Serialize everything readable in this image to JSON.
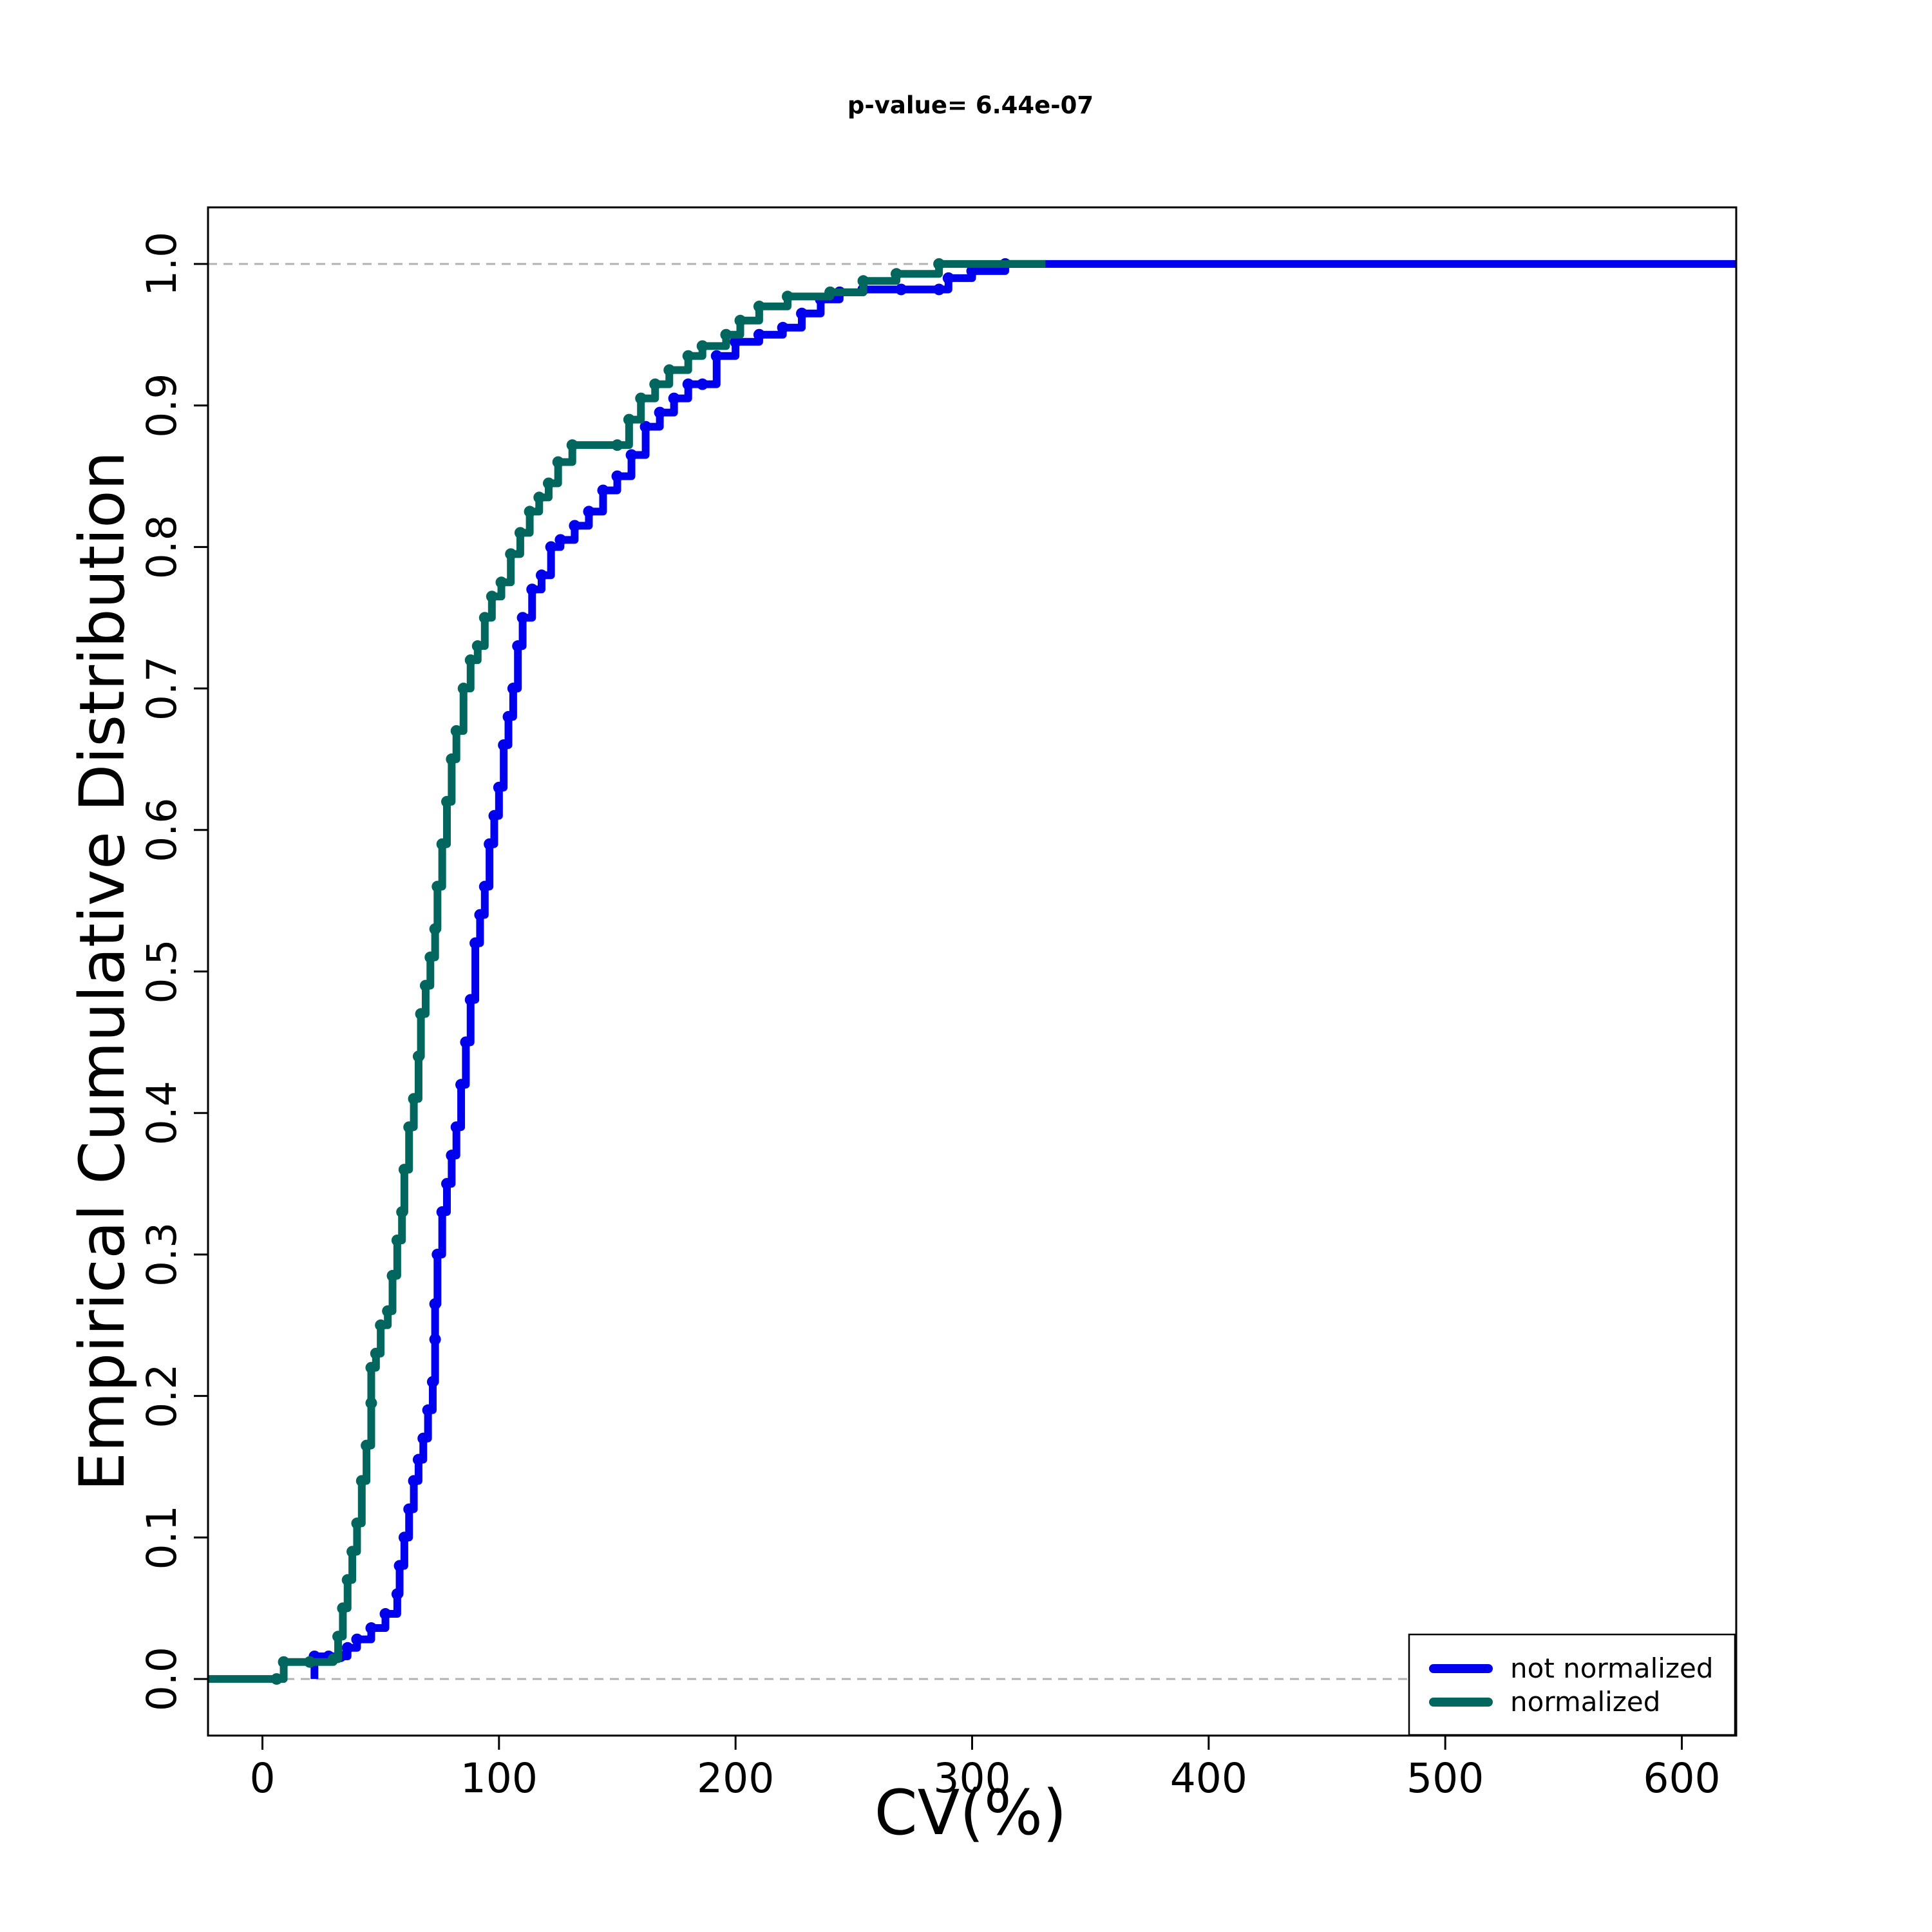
{
  "chart_data": {
    "type": "line",
    "title": "p-value= 6.44e-07",
    "xlabel": "CV(%)",
    "ylabel": "Empirical Cumulative Distribution",
    "xlim": [
      -23,
      623
    ],
    "ylim": [
      -0.04,
      1.04
    ],
    "xticks": [
      0,
      100,
      200,
      300,
      400,
      500,
      600
    ],
    "yticks": [
      0.0,
      0.1,
      0.2,
      0.3,
      0.4,
      0.5,
      0.6,
      0.7,
      0.8,
      0.9,
      1.0
    ],
    "xtick_labels": [
      "0",
      "100",
      "200",
      "300",
      "400",
      "500",
      "600"
    ],
    "ytick_labels": [
      "0.0",
      "0.1",
      "0.2",
      "0.3",
      "0.4",
      "0.5",
      "0.6",
      "0.7",
      "0.8",
      "0.9",
      "1.0"
    ],
    "reference_lines_y": [
      0.0,
      1.0
    ],
    "grid": false,
    "legend_position": "bottom-right",
    "series": [
      {
        "name": "not normalized",
        "color": "#0000EE",
        "points": [
          [
            22,
            0.0
          ],
          [
            22,
            0.016
          ],
          [
            28,
            0.016
          ],
          [
            33,
            0.016
          ],
          [
            36,
            0.022
          ],
          [
            40,
            0.028
          ],
          [
            46,
            0.036
          ],
          [
            52,
            0.046
          ],
          [
            57,
            0.06
          ],
          [
            58,
            0.08
          ],
          [
            60,
            0.1
          ],
          [
            62,
            0.12
          ],
          [
            64,
            0.14
          ],
          [
            66,
            0.155
          ],
          [
            68,
            0.17
          ],
          [
            70,
            0.19
          ],
          [
            72,
            0.21
          ],
          [
            73,
            0.24
          ],
          [
            73,
            0.265
          ],
          [
            74,
            0.3
          ],
          [
            76,
            0.33
          ],
          [
            78,
            0.35
          ],
          [
            80,
            0.37
          ],
          [
            82,
            0.39
          ],
          [
            84,
            0.42
          ],
          [
            86,
            0.45
          ],
          [
            88,
            0.48
          ],
          [
            90,
            0.52
          ],
          [
            92,
            0.54
          ],
          [
            94,
            0.56
          ],
          [
            96,
            0.59
          ],
          [
            98,
            0.61
          ],
          [
            100,
            0.63
          ],
          [
            102,
            0.66
          ],
          [
            104,
            0.68
          ],
          [
            106,
            0.7
          ],
          [
            108,
            0.73
          ],
          [
            110,
            0.75
          ],
          [
            114,
            0.77
          ],
          [
            118,
            0.78
          ],
          [
            122,
            0.8
          ],
          [
            126,
            0.805
          ],
          [
            132,
            0.815
          ],
          [
            138,
            0.825
          ],
          [
            144,
            0.84
          ],
          [
            150,
            0.85
          ],
          [
            156,
            0.865
          ],
          [
            162,
            0.885
          ],
          [
            168,
            0.895
          ],
          [
            174,
            0.905
          ],
          [
            180,
            0.915
          ],
          [
            186,
            0.915
          ],
          [
            192,
            0.935
          ],
          [
            200,
            0.945
          ],
          [
            210,
            0.95
          ],
          [
            220,
            0.955
          ],
          [
            228,
            0.965
          ],
          [
            236,
            0.975
          ],
          [
            244,
            0.98
          ],
          [
            254,
            0.982
          ],
          [
            270,
            0.982
          ],
          [
            286,
            0.982
          ],
          [
            290,
            0.99
          ],
          [
            300,
            0.995
          ],
          [
            314,
            1.0
          ],
          [
            623,
            1.0
          ]
        ]
      },
      {
        "name": "normalized",
        "color": "#00665E",
        "points": [
          [
            -23,
            0.0
          ],
          [
            6,
            0.0
          ],
          [
            9,
            0.012
          ],
          [
            20,
            0.012
          ],
          [
            30,
            0.014
          ],
          [
            32,
            0.03
          ],
          [
            34,
            0.05
          ],
          [
            36,
            0.07
          ],
          [
            38,
            0.09
          ],
          [
            40,
            0.11
          ],
          [
            42,
            0.14
          ],
          [
            44,
            0.165
          ],
          [
            46,
            0.195
          ],
          [
            46,
            0.22
          ],
          [
            48,
            0.23
          ],
          [
            50,
            0.25
          ],
          [
            53,
            0.26
          ],
          [
            55,
            0.285
          ],
          [
            57,
            0.31
          ],
          [
            59,
            0.33
          ],
          [
            60,
            0.36
          ],
          [
            62,
            0.39
          ],
          [
            64,
            0.41
          ],
          [
            66,
            0.44
          ],
          [
            67,
            0.47
          ],
          [
            69,
            0.49
          ],
          [
            71,
            0.51
          ],
          [
            73,
            0.53
          ],
          [
            74,
            0.56
          ],
          [
            76,
            0.59
          ],
          [
            78,
            0.62
          ],
          [
            80,
            0.65
          ],
          [
            82,
            0.67
          ],
          [
            85,
            0.7
          ],
          [
            88,
            0.72
          ],
          [
            91,
            0.73
          ],
          [
            94,
            0.75
          ],
          [
            97,
            0.765
          ],
          [
            101,
            0.775
          ],
          [
            105,
            0.795
          ],
          [
            109,
            0.81
          ],
          [
            113,
            0.825
          ],
          [
            117,
            0.835
          ],
          [
            121,
            0.845
          ],
          [
            125,
            0.86
          ],
          [
            131,
            0.872
          ],
          [
            150,
            0.872
          ],
          [
            155,
            0.89
          ],
          [
            160,
            0.905
          ],
          [
            166,
            0.915
          ],
          [
            172,
            0.925
          ],
          [
            180,
            0.935
          ],
          [
            186,
            0.942
          ],
          [
            196,
            0.95
          ],
          [
            202,
            0.96
          ],
          [
            210,
            0.97
          ],
          [
            222,
            0.977
          ],
          [
            240,
            0.98
          ],
          [
            254,
            0.988
          ],
          [
            268,
            0.993
          ],
          [
            286,
            1.0
          ],
          [
            331,
            1.0
          ]
        ]
      }
    ]
  }
}
